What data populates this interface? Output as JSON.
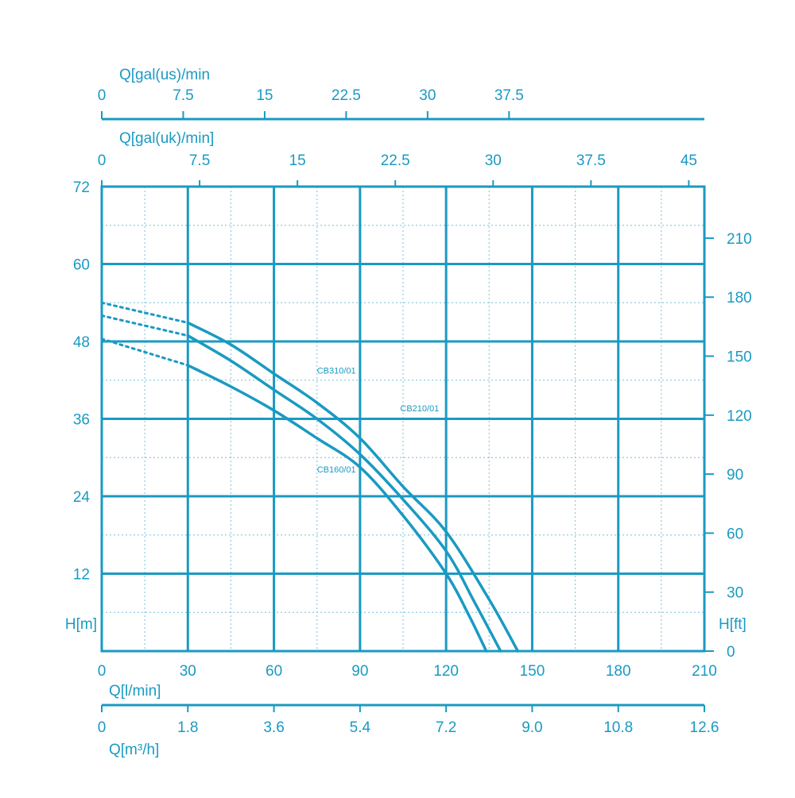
{
  "colors": {
    "primary": "#1a9ac2",
    "grid_dot": "#8fcbe0",
    "background": "#ffffff"
  },
  "chart_data": {
    "type": "line",
    "grid": true,
    "axes": {
      "top_us": {
        "label": "Q[gal(us)/min",
        "ticks": [
          "0",
          "7.5",
          "15",
          "22.5",
          "30",
          "37.5"
        ],
        "values": [
          0,
          7.5,
          15,
          22.5,
          30,
          37.5
        ]
      },
      "top_uk": {
        "label": "Q[gal(uk)/min]",
        "ticks": [
          "0",
          "7.5",
          "15",
          "22.5",
          "30",
          "37.5",
          "45"
        ],
        "values": [
          0,
          7.5,
          15,
          22.5,
          30,
          37.5,
          45
        ]
      },
      "left_m": {
        "label": "H[m]",
        "ticks": [
          "72",
          "60",
          "48",
          "36",
          "24",
          "12"
        ],
        "values": [
          72,
          60,
          48,
          36,
          24,
          12
        ],
        "range": [
          0,
          72
        ]
      },
      "right_ft": {
        "label": "H[ft]",
        "ticks": [
          "210",
          "180",
          "150",
          "120",
          "90",
          "60",
          "30",
          "0"
        ],
        "values": [
          210,
          180,
          150,
          120,
          90,
          60,
          30,
          0
        ]
      },
      "bottom_lmin": {
        "label": "Q[l/min]",
        "ticks": [
          "0",
          "30",
          "60",
          "90",
          "120",
          "150",
          "180",
          "210"
        ],
        "values": [
          0,
          30,
          60,
          90,
          120,
          150,
          180,
          210
        ],
        "range": [
          0,
          210
        ]
      },
      "bottom_m3h": {
        "label": "Q[m³/h]",
        "ticks": [
          "0",
          "1.8",
          "3.6",
          "5.4",
          "7.2",
          "9.0",
          "10.8",
          "12.6"
        ],
        "values": [
          0,
          1.8,
          3.6,
          5.4,
          7.2,
          9.0,
          10.8,
          12.6
        ]
      }
    },
    "series": [
      {
        "name": "CB310/01",
        "label_at": [
          75,
          43
        ],
        "dotted": [
          [
            0,
            54
          ],
          [
            30,
            50.9
          ]
        ],
        "solid": [
          [
            30,
            50.9
          ],
          [
            45,
            47.5
          ],
          [
            60,
            43
          ],
          [
            75,
            38.5
          ],
          [
            90,
            33
          ],
          [
            105,
            25.5
          ],
          [
            120,
            18.5
          ],
          [
            135,
            8
          ],
          [
            145,
            0
          ]
        ]
      },
      {
        "name": "CB210/01",
        "label_at": [
          104,
          37.2
        ],
        "dotted": [
          [
            0,
            52
          ],
          [
            30,
            48.9
          ]
        ],
        "solid": [
          [
            30,
            48.9
          ],
          [
            45,
            45
          ],
          [
            60,
            40.5
          ],
          [
            75,
            36
          ],
          [
            90,
            30.5
          ],
          [
            105,
            23.5
          ],
          [
            120,
            15.5
          ],
          [
            130,
            7.5
          ],
          [
            139,
            0
          ]
        ]
      },
      {
        "name": "CB160/01",
        "label_at": [
          75,
          27.7
        ],
        "dotted": [
          [
            0,
            48.4
          ],
          [
            30,
            44.3
          ]
        ],
        "solid": [
          [
            30,
            44.3
          ],
          [
            45,
            41
          ],
          [
            60,
            37.3
          ],
          [
            75,
            33
          ],
          [
            90,
            28.5
          ],
          [
            105,
            21
          ],
          [
            120,
            12
          ],
          [
            128,
            5.5
          ],
          [
            134,
            0
          ]
        ]
      }
    ]
  }
}
